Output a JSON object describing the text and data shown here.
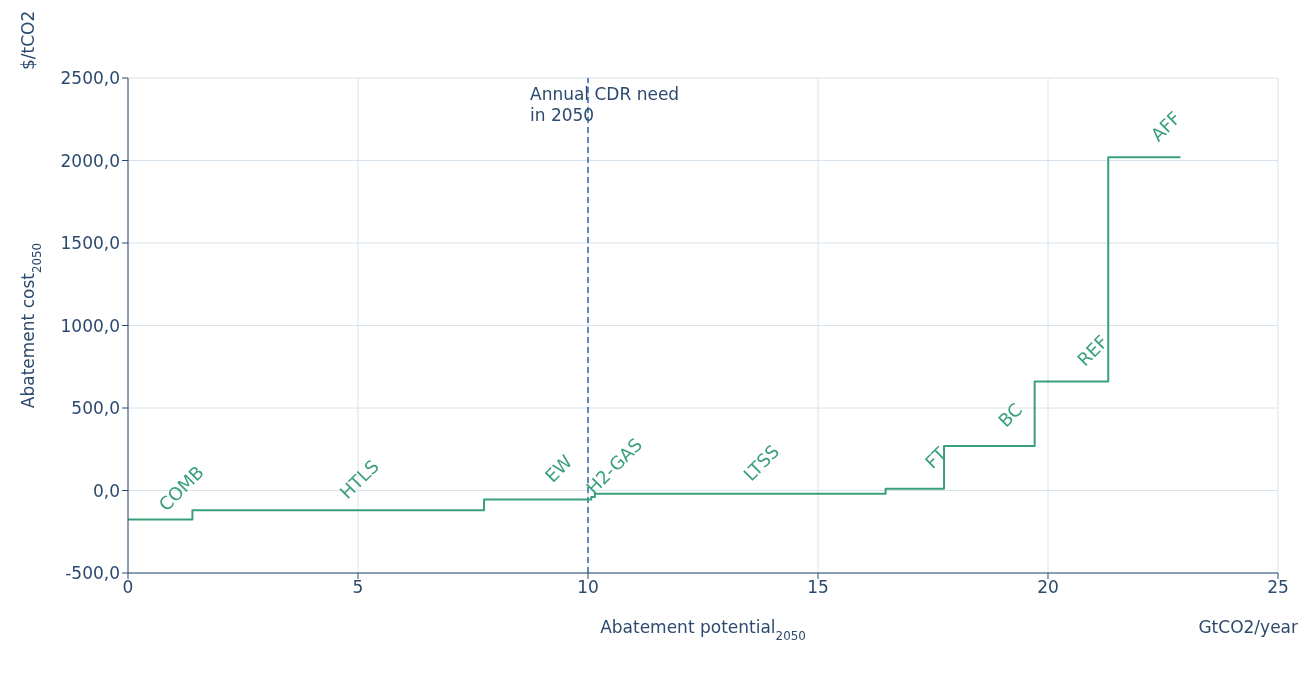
{
  "chart_data": {
    "type": "step",
    "xlabel": "Abatement potential$_{2050}$",
    "ylabel": "Abatement cost$_{2050}$",
    "x": [
      0,
      1.4,
      7.74,
      10.07,
      10.15,
      16.47,
      17.74,
      19.71,
      21.31,
      22.88
    ],
    "series": [
      {
        "color": "#3aa07a",
        "values": [
          -175,
          -120,
          -55,
          -40,
          -20,
          10,
          270,
          660,
          2020,
          2020
        ]
      }
    ],
    "xlim": [
      0,
      25
    ],
    "xticks": [
      0,
      5,
      10,
      15,
      20,
      25
    ],
    "ylim": [
      -500,
      2500
    ],
    "yticks": [
      {
        "value": -500,
        "label": "-500,0"
      },
      {
        "value": 0,
        "label": "0,0"
      },
      {
        "value": 500,
        "label": "500,0"
      },
      {
        "value": 1000,
        "label": "1000,0"
      },
      {
        "value": 1500,
        "label": "1500,0"
      },
      {
        "value": 2000,
        "label": "2000,0"
      },
      {
        "value": 2500,
        "label": "2500,0"
      }
    ],
    "grid": true,
    "marker": "none",
    "line_style": "solid",
    "ref_lines": [
      {
        "axis": "x",
        "value": 10,
        "label": "Annual CDR need in 2050",
        "color": "#3b6fb6",
        "line_style": "dashed"
      }
    ],
    "annotations": [
      "$/tCO2",
      "GtCO2/year",
      {
        "text": "COMB",
        "x": 0.7,
        "y": -175
      },
      {
        "text": "HTLS",
        "x": 4.57,
        "y": -120
      },
      {
        "text": "EW",
        "x": 8.9,
        "y": -55
      },
      {
        "text": "H2-GAS",
        "x": 10.11,
        "y": -40
      },
      {
        "text": "LTSS",
        "x": 13.31,
        "y": -20
      },
      {
        "text": "FT",
        "x": 17.1,
        "y": 10
      },
      {
        "text": "BC",
        "x": 18.72,
        "y": 270
      },
      {
        "text": "REF",
        "x": 20.51,
        "y": 660
      },
      {
        "text": "AFF",
        "x": 22.1,
        "y": 2020
      }
    ]
  }
}
